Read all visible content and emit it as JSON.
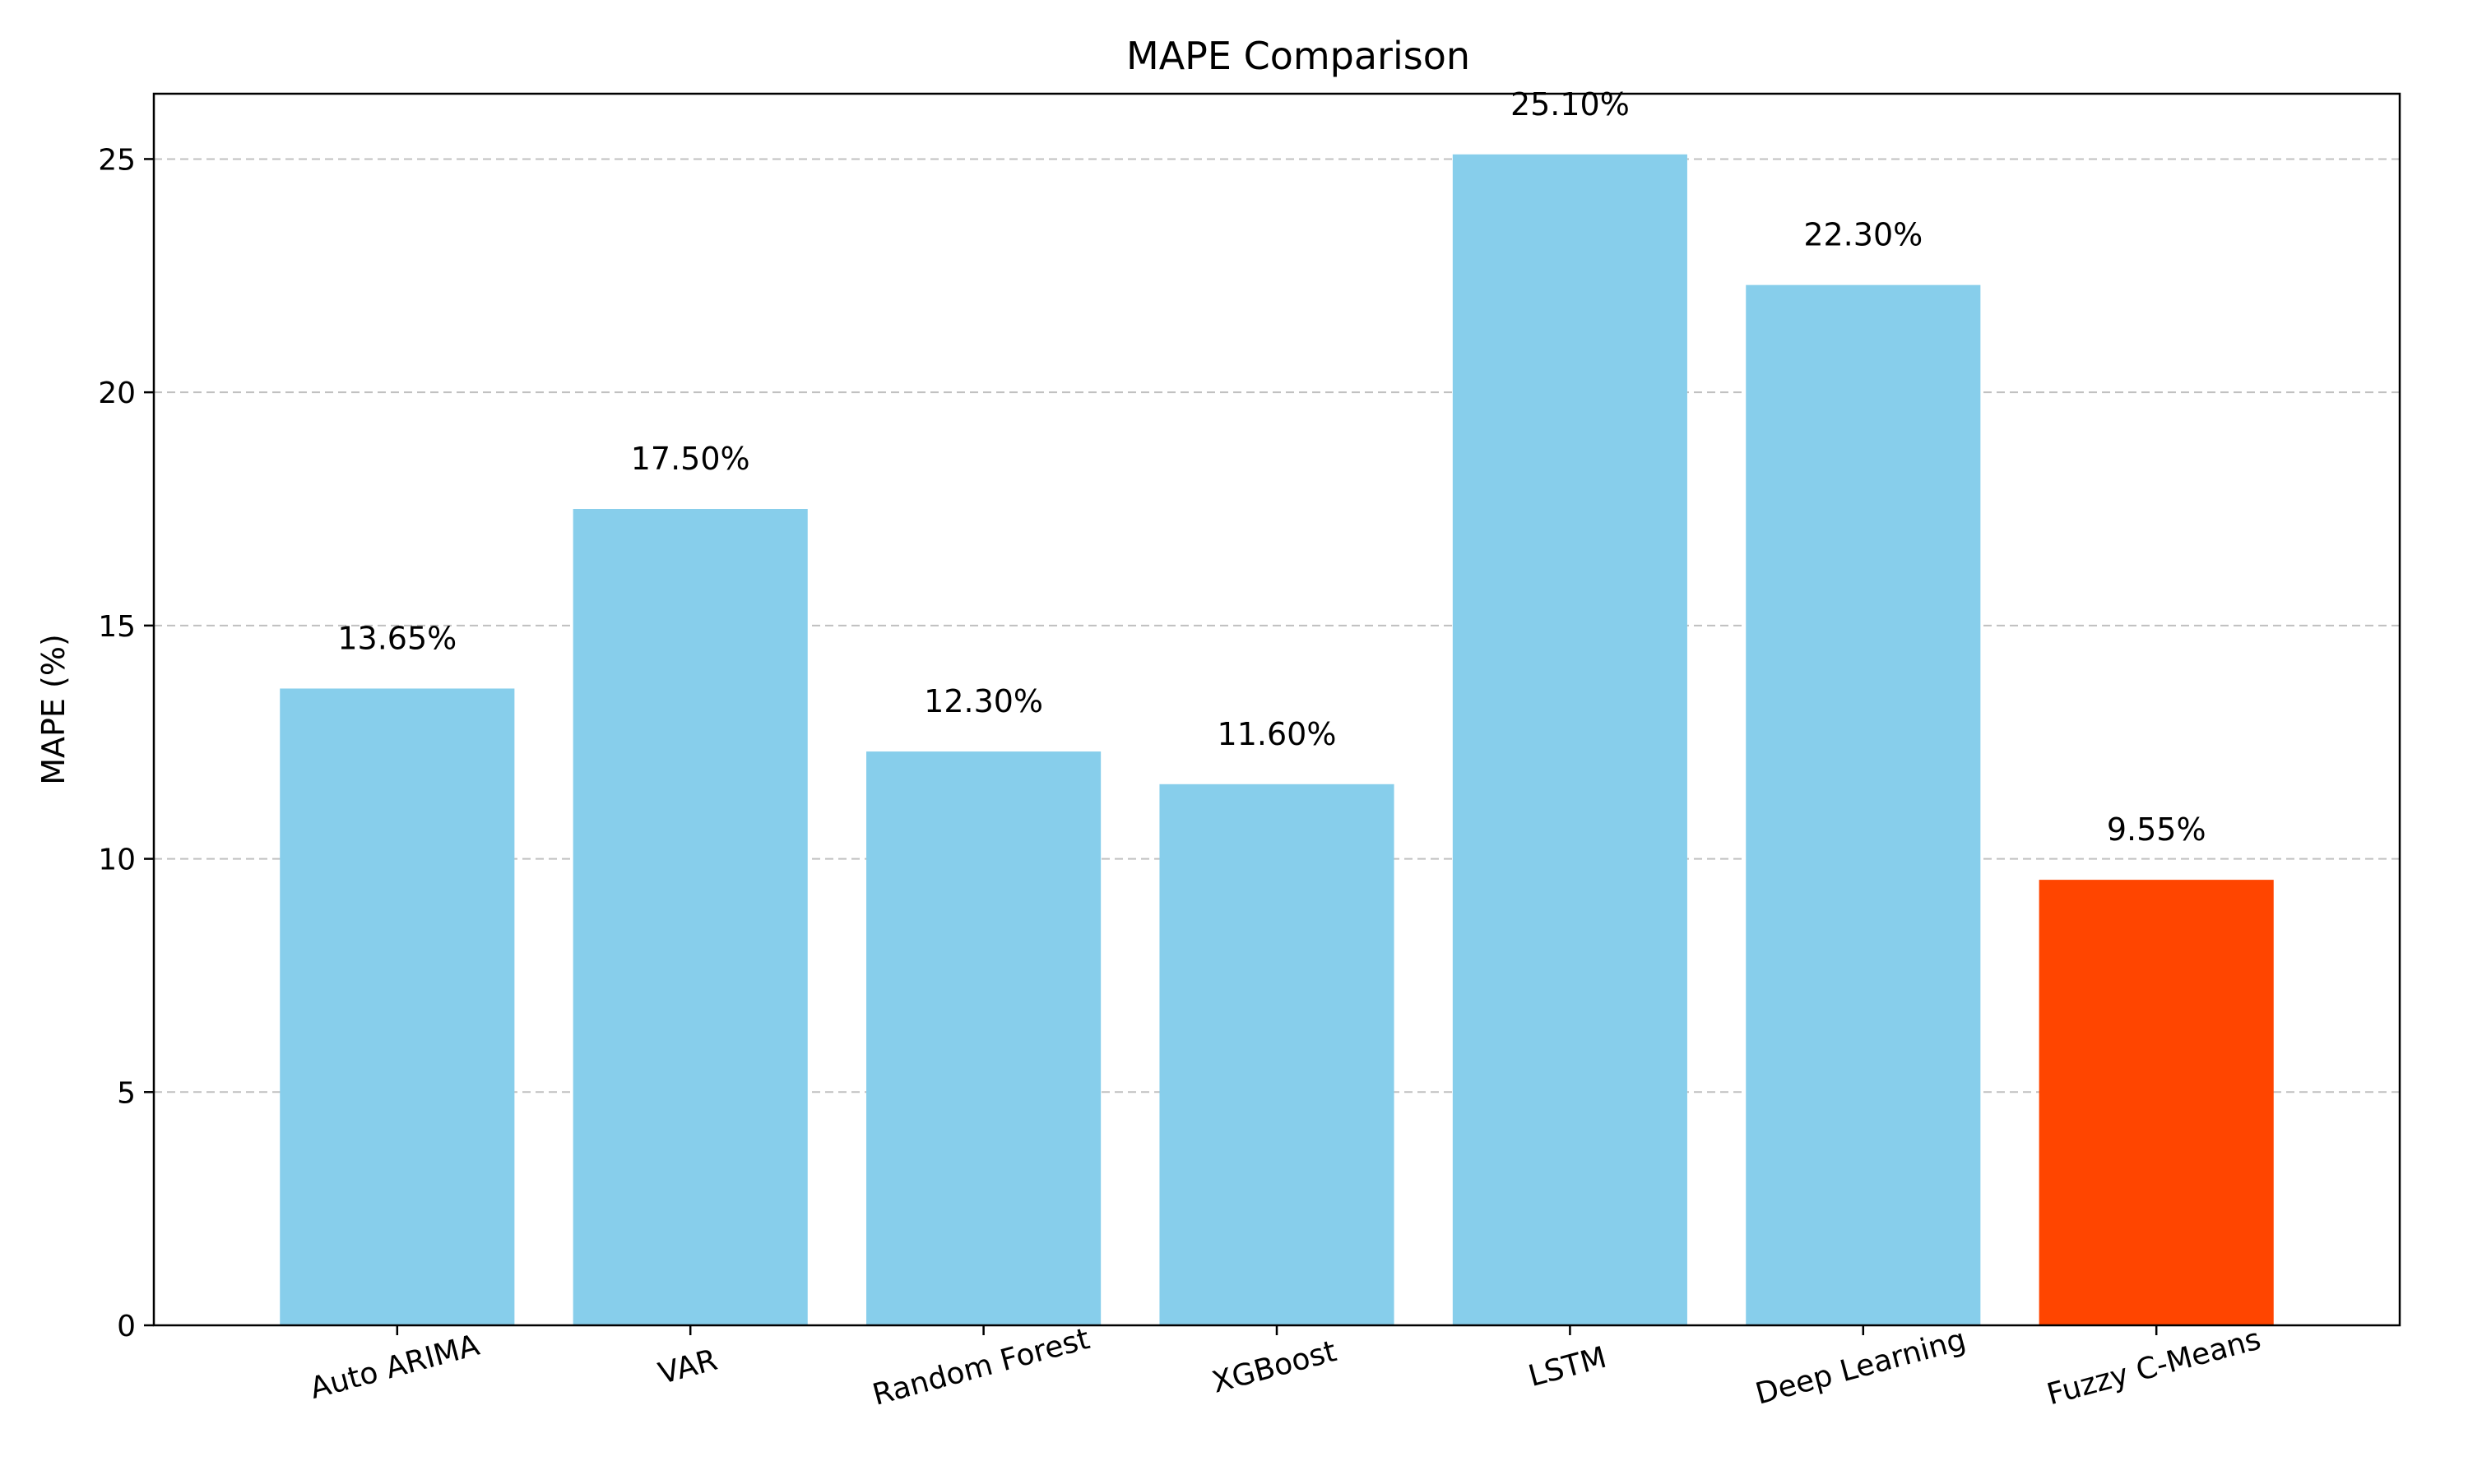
{
  "chart_data": {
    "type": "bar",
    "title": "MAPE Comparison",
    "xlabel": "",
    "ylabel": "MAPE (%)",
    "categories": [
      "Auto ARIMA",
      "VAR",
      "Random Forest",
      "XGBoost",
      "LSTM",
      "Deep Learning",
      "Fuzzy C-Means"
    ],
    "values": [
      13.65,
      17.5,
      12.3,
      11.6,
      25.1,
      22.3,
      9.55
    ],
    "value_labels": [
      "13.65%",
      "17.50%",
      "12.30%",
      "11.60%",
      "25.10%",
      "22.30%",
      "9.55%"
    ],
    "ylim": [
      0,
      26.4
    ],
    "yticks": [
      0,
      5,
      10,
      15,
      20,
      25
    ],
    "ytick_labels": [
      "0",
      "5",
      "10",
      "15",
      "20",
      "25"
    ],
    "grid": "y-dashed",
    "legend": "none",
    "colors": {
      "default_bar": "#87CEEB",
      "highlight_bar": "#FF4500",
      "grid": "#c0c0c0",
      "axis": "#000000"
    },
    "highlight_index": 6
  }
}
